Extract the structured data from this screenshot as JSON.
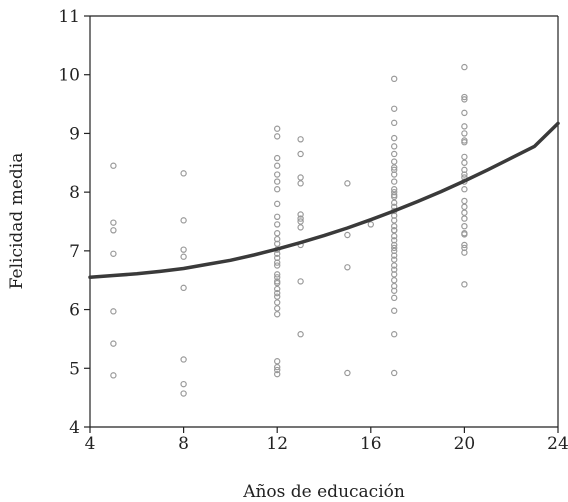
{
  "chart_data": {
    "type": "scatter",
    "xlabel": "Años de educación",
    "ylabel": "Felicidad media",
    "xlim": [
      4,
      24
    ],
    "ylim": [
      4,
      11
    ],
    "xticks": [
      4,
      8,
      12,
      16,
      20,
      24
    ],
    "yticks": [
      4,
      5,
      6,
      7,
      8,
      9,
      10,
      11
    ],
    "grid": false,
    "colors": {
      "points": "#9a9a9a",
      "curve": "#3a3a3a",
      "axis": "#222222"
    },
    "series": [
      {
        "kind": "points",
        "x": [
          5,
          5,
          5,
          5,
          5,
          5,
          5,
          8,
          8,
          8,
          8,
          8,
          8,
          8,
          8,
          12,
          12,
          12,
          12,
          12,
          12,
          12,
          12,
          12,
          12,
          12,
          12,
          12,
          12,
          12,
          12,
          12,
          12,
          12,
          12,
          12,
          12,
          12,
          12,
          12,
          12,
          12,
          12,
          12,
          12,
          12,
          12,
          13,
          13,
          13,
          13,
          13,
          13,
          13,
          13,
          13,
          13,
          13,
          15,
          15,
          15,
          15,
          16,
          17,
          17,
          17,
          17,
          17,
          17,
          17,
          17,
          17,
          17,
          17,
          17,
          17,
          17,
          17,
          17,
          17,
          17,
          17,
          17,
          17,
          17,
          17,
          17,
          17,
          17,
          17,
          17,
          17,
          17,
          17,
          17,
          17,
          17,
          17,
          17,
          17,
          17,
          17,
          17,
          20,
          20,
          20,
          20,
          20,
          20,
          20,
          20,
          20,
          20,
          20,
          20,
          20,
          20,
          20,
          20,
          20,
          20,
          20,
          20,
          20,
          20,
          20,
          20,
          20,
          20
        ],
        "y": [
          8.45,
          7.48,
          7.35,
          6.95,
          5.97,
          5.42,
          4.88,
          8.32,
          7.52,
          7.02,
          6.9,
          6.37,
          5.15,
          4.73,
          4.57,
          9.08,
          8.95,
          8.58,
          8.45,
          8.3,
          8.18,
          8.05,
          7.8,
          7.58,
          7.45,
          7.3,
          7.12,
          7.02,
          6.95,
          6.88,
          6.75,
          6.6,
          6.55,
          6.48,
          6.35,
          6.28,
          6.22,
          6.12,
          6.02,
          5.92,
          5.12,
          5.02,
          4.97,
          4.9,
          6.45,
          7.2,
          6.8,
          8.9,
          8.65,
          8.25,
          8.15,
          7.62,
          7.55,
          7.5,
          7.4,
          7.1,
          6.48,
          5.58,
          8.15,
          7.27,
          6.72,
          4.92,
          7.45,
          9.93,
          9.42,
          9.18,
          8.92,
          8.78,
          8.65,
          8.52,
          8.42,
          8.3,
          8.18,
          8.05,
          8.0,
          7.92,
          7.82,
          7.75,
          7.68,
          7.6,
          7.52,
          7.42,
          7.35,
          7.25,
          7.18,
          7.1,
          7.0,
          6.92,
          6.85,
          6.75,
          6.68,
          6.5,
          6.4,
          6.32,
          6.2,
          5.98,
          5.58,
          4.92,
          7.05,
          7.35,
          8.38,
          7.95,
          6.6,
          10.13,
          9.62,
          9.58,
          9.35,
          9.12,
          9.0,
          8.85,
          8.6,
          8.5,
          8.38,
          8.3,
          8.18,
          8.05,
          7.85,
          7.75,
          7.65,
          7.55,
          7.42,
          7.28,
          7.1,
          7.05,
          6.97,
          6.43,
          8.88,
          8.25,
          7.3
        ]
      },
      {
        "kind": "curve",
        "x": [
          4,
          5,
          6,
          7,
          8,
          9,
          10,
          11,
          12,
          13,
          14,
          15,
          16,
          17,
          18,
          19,
          20,
          21,
          22,
          23,
          24
        ],
        "y": [
          6.55,
          6.58,
          6.61,
          6.65,
          6.7,
          6.77,
          6.84,
          6.93,
          7.03,
          7.14,
          7.26,
          7.39,
          7.53,
          7.68,
          7.84,
          8.01,
          8.19,
          8.38,
          8.58,
          8.78,
          9.17
        ]
      }
    ]
  }
}
